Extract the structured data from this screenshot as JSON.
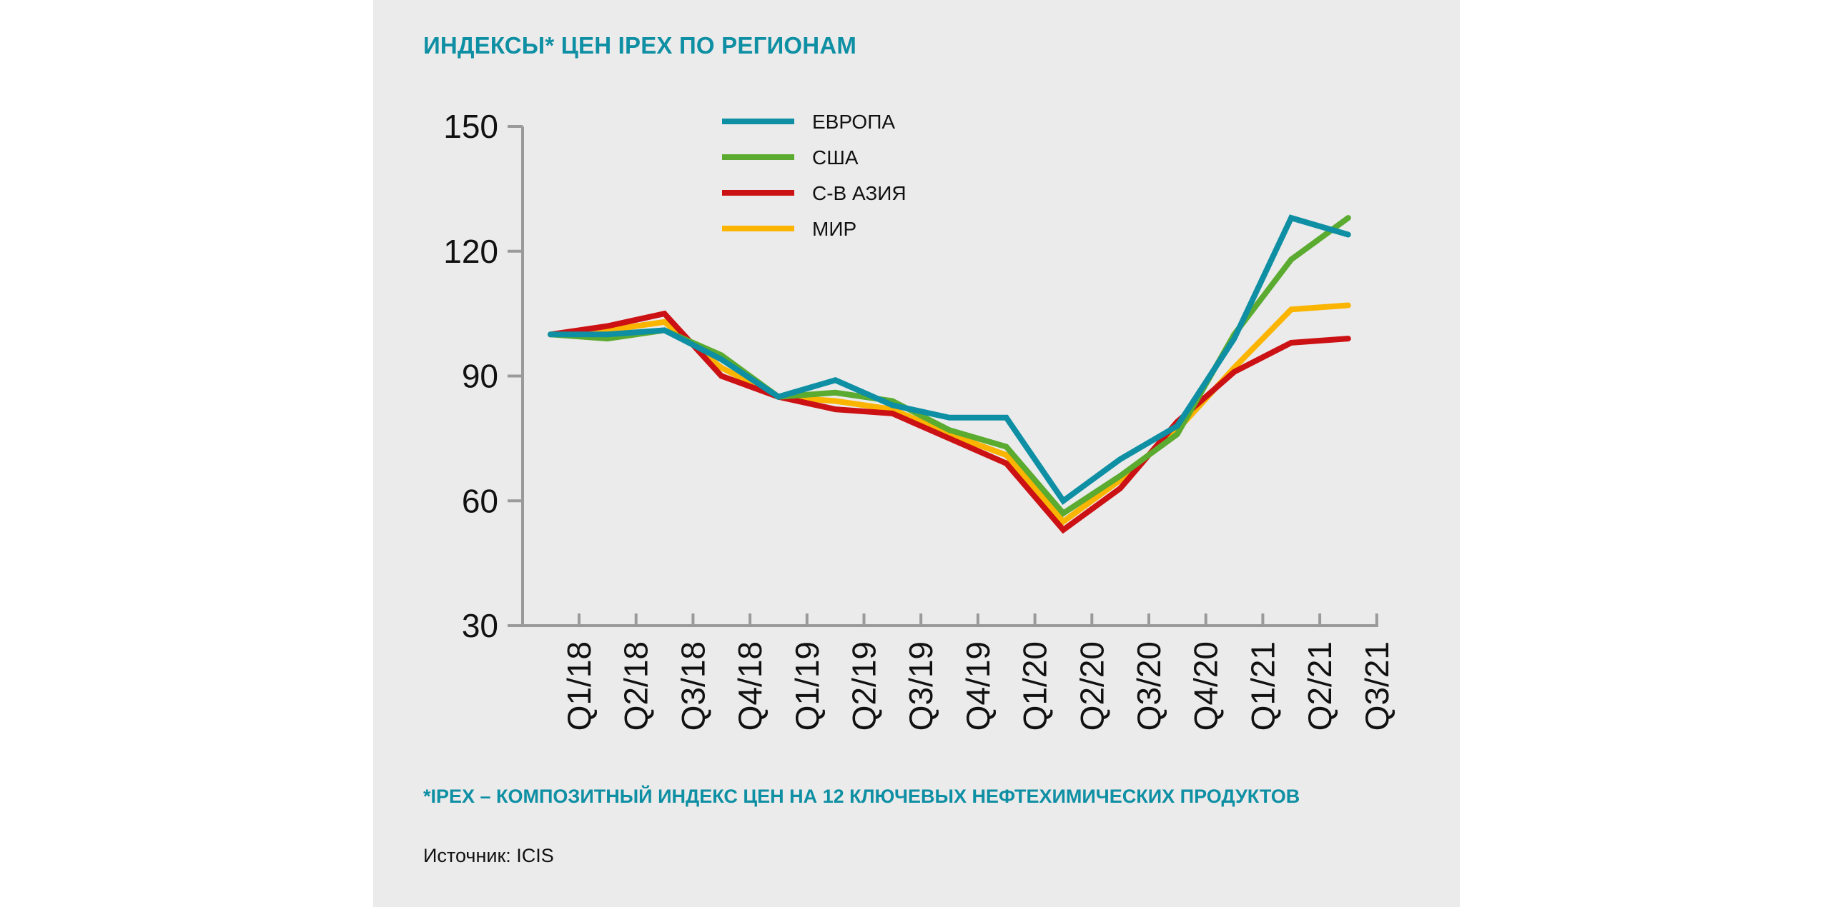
{
  "chart_data": {
    "type": "line",
    "title": "ИНДЕКСЫ* ЦЕН IPEX ПО РЕГИОНАМ",
    "xlabel": "",
    "ylabel": "",
    "ylim": [
      30,
      150
    ],
    "yticks": [
      30,
      60,
      90,
      120,
      150
    ],
    "grid": false,
    "legend_position": "top-center",
    "categories": [
      "Q1/18",
      "Q2/18",
      "Q3/18",
      "Q4/18",
      "Q1/19",
      "Q2/19",
      "Q3/19",
      "Q4/19",
      "Q1/20",
      "Q2/20",
      "Q3/20",
      "Q4/20",
      "Q1/21",
      "Q2/21",
      "Q3/21"
    ],
    "series": [
      {
        "name": "ЕВРОПА",
        "color": "#0e8fa3",
        "values": [
          100,
          100,
          101,
          94,
          85,
          89,
          83,
          80,
          80,
          60,
          70,
          78,
          99,
          128,
          124
        ]
      },
      {
        "name": "США",
        "color": "#5aab2f",
        "values": [
          100,
          99,
          101,
          95,
          85,
          86,
          84,
          77,
          73,
          57,
          66,
          76,
          100,
          118,
          128
        ]
      },
      {
        "name": "С-В АЗИЯ",
        "color": "#cc1114",
        "values": [
          100,
          102,
          105,
          90,
          85,
          82,
          81,
          75,
          69,
          53,
          63,
          79,
          91,
          98,
          99
        ]
      },
      {
        "name": "МИР",
        "color": "#fbb400",
        "values": [
          100,
          101,
          103,
          92,
          85,
          84,
          82,
          76,
          71,
          55,
          65,
          77,
          92,
          106,
          107
        ]
      }
    ]
  },
  "footnote": "*IPEX – КОМПОЗИТНЫЙ ИНДЕКС ЦЕН НА 12 КЛЮЧЕВЫХ НЕФТЕХИМИЧЕСКИХ ПРОДУКТОВ",
  "source": "Источник: ICIS"
}
